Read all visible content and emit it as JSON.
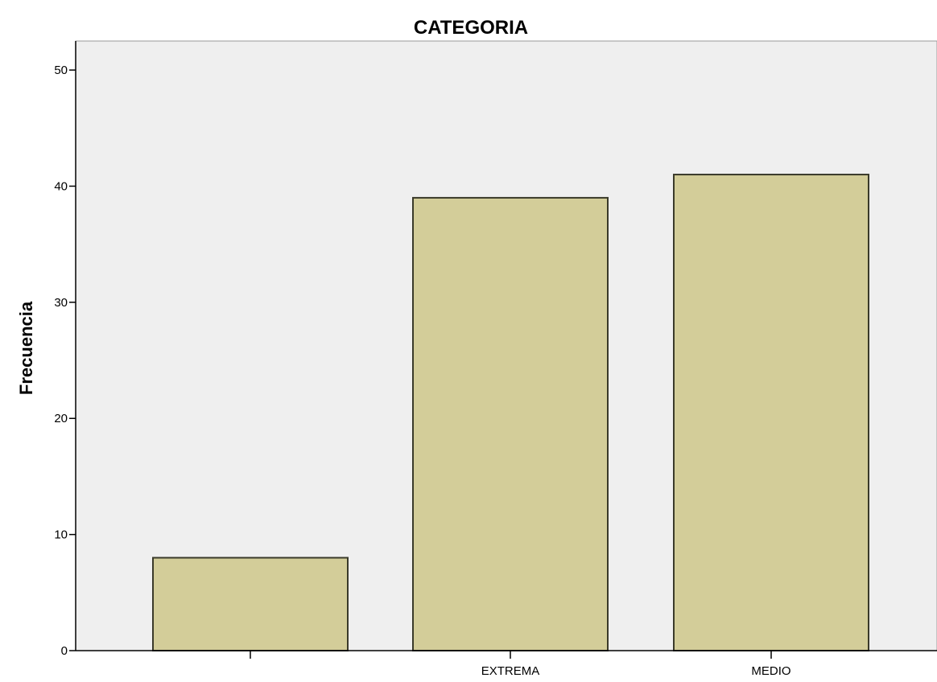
{
  "chart_data": {
    "type": "bar",
    "title": "CATEGORIA",
    "xlabel": "",
    "ylabel": "Frecuencia",
    "categories": [
      "",
      "EXTREMA",
      "MEDIO"
    ],
    "values": [
      8,
      39,
      41
    ],
    "ylim": [
      0,
      52.5
    ],
    "yticks": [
      0,
      10,
      20,
      30,
      40,
      50
    ],
    "grid": false,
    "colors": {
      "plot_background": "#efefef",
      "bar_fill": "#d3cd99",
      "bar_stroke": "#3a3a2a",
      "axis": "#000000"
    }
  }
}
